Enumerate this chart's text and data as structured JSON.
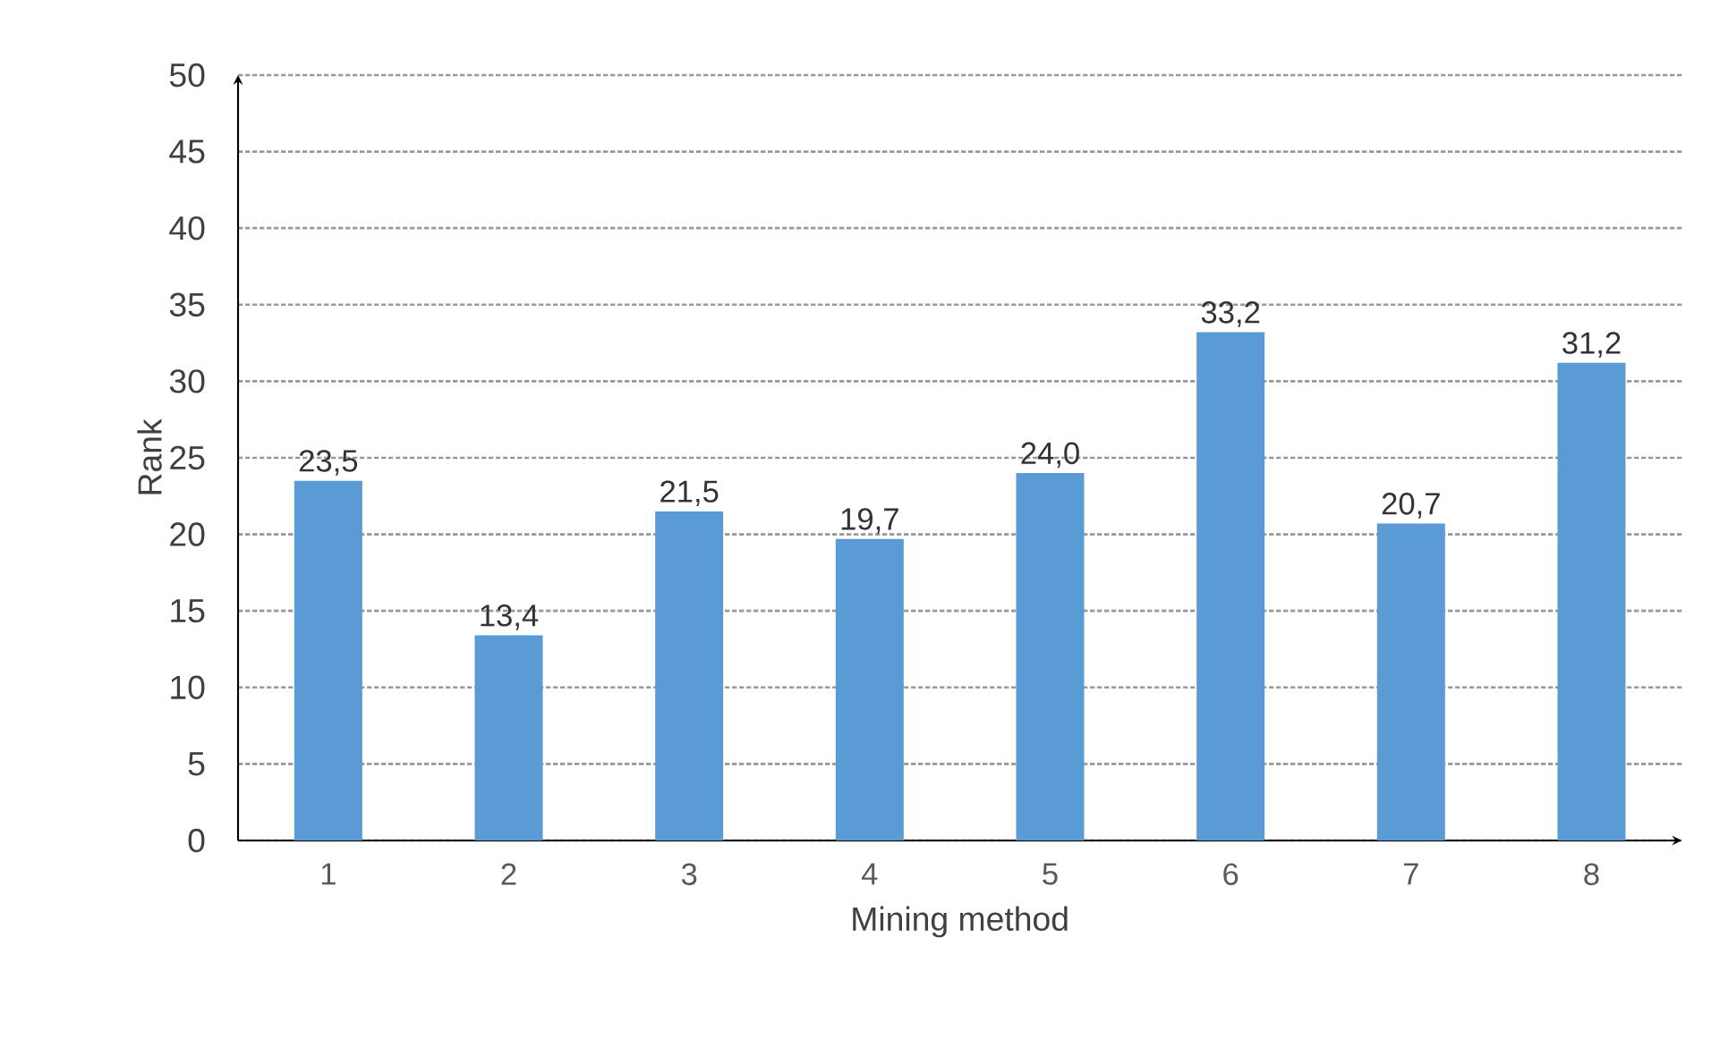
{
  "chart_data": {
    "type": "bar",
    "xlabel": "Mining method",
    "ylabel": "Rank",
    "categories": [
      "1",
      "2",
      "3",
      "4",
      "5",
      "6",
      "7",
      "8"
    ],
    "values": [
      23.5,
      13.4,
      21.5,
      19.7,
      24.0,
      33.2,
      20.7,
      31.2
    ],
    "value_labels": [
      "23,5",
      "13,4",
      "21,5",
      "19,7",
      "24,0",
      "33,2",
      "20,7",
      "31,2"
    ],
    "color": "#5b9bd5",
    "ylim": [
      0,
      50
    ],
    "yticks": [
      0,
      5,
      10,
      15,
      20,
      25,
      30,
      35,
      40,
      45,
      50
    ],
    "grid": "y"
  }
}
